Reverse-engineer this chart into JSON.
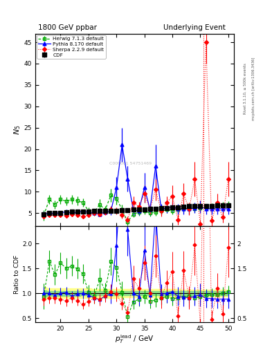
{
  "title_left": "1800 GeV ppbar",
  "title_right": "Underlying Event",
  "ylabel_main": "$N_5$",
  "ylabel_ratio": "Ratio to CDF",
  "xlabel": "$p_T^{\\rm lead}$ / GeV",
  "right_label1": "Rivet 3.1.10, ≥ 500k events",
  "right_label2": "mcplots.cern.ch [arXiv:1306.3436]",
  "watermark": "C000001 54751469",
  "ylim_main": [
    2,
    47
  ],
  "ylim_ratio": [
    0.42,
    2.35
  ],
  "xlim": [
    15.5,
    51
  ],
  "vline_x": 45.5,
  "cdf_x": [
    17,
    18,
    19,
    20,
    21,
    22,
    23,
    24,
    25,
    26,
    27,
    28,
    29,
    30,
    31,
    32,
    33,
    34,
    35,
    36,
    37,
    38,
    39,
    40,
    41,
    42,
    43,
    44,
    45,
    46,
    47,
    48,
    49,
    50
  ],
  "cdf_y": [
    4.8,
    5.0,
    5.1,
    5.1,
    5.2,
    5.3,
    5.3,
    5.4,
    5.4,
    5.5,
    5.5,
    5.5,
    5.6,
    5.6,
    5.7,
    5.7,
    5.8,
    5.9,
    5.9,
    6.0,
    6.0,
    6.1,
    6.2,
    6.3,
    6.4,
    6.5,
    6.6,
    6.6,
    6.7,
    6.7,
    6.7,
    6.8,
    6.8,
    6.8
  ],
  "cdf_yerr": [
    0.3,
    0.25,
    0.25,
    0.25,
    0.25,
    0.25,
    0.25,
    0.25,
    0.25,
    0.25,
    0.25,
    0.25,
    0.25,
    0.25,
    0.25,
    0.25,
    0.25,
    0.25,
    0.25,
    0.25,
    0.25,
    0.25,
    0.25,
    0.25,
    0.25,
    0.25,
    0.25,
    0.25,
    0.25,
    0.25,
    0.25,
    0.25,
    0.25,
    0.25
  ],
  "herwig_x": [
    17,
    18,
    19,
    20,
    21,
    22,
    23,
    24,
    25,
    26,
    27,
    28,
    29,
    30,
    31,
    32,
    33,
    34,
    35,
    36,
    37,
    38,
    39,
    40,
    41,
    42,
    43,
    44,
    45,
    46,
    47,
    48,
    49,
    50
  ],
  "herwig_y": [
    4.5,
    8.2,
    7.0,
    8.2,
    7.8,
    8.2,
    7.9,
    7.5,
    5.5,
    5.2,
    7.0,
    5.8,
    9.2,
    8.5,
    5.8,
    3.0,
    4.8,
    5.2,
    5.5,
    5.0,
    5.2,
    5.5,
    5.8,
    5.6,
    5.8,
    6.0,
    6.2,
    6.0,
    6.2,
    6.4,
    6.5,
    6.6,
    6.8,
    7.0
  ],
  "herwig_yerr": [
    1.2,
    1.0,
    1.0,
    1.0,
    1.0,
    1.0,
    1.0,
    1.0,
    0.8,
    0.8,
    1.2,
    0.8,
    1.5,
    1.5,
    1.2,
    0.8,
    0.8,
    0.8,
    0.8,
    0.8,
    0.8,
    0.8,
    0.8,
    0.8,
    0.8,
    0.8,
    0.8,
    0.8,
    0.8,
    0.8,
    0.8,
    0.8,
    0.8,
    0.8
  ],
  "pythia_x": [
    17,
    18,
    19,
    20,
    21,
    22,
    23,
    24,
    25,
    26,
    27,
    28,
    29,
    30,
    31,
    32,
    33,
    34,
    35,
    36,
    37,
    38,
    39,
    40,
    41,
    42,
    43,
    44,
    45,
    46,
    47,
    48,
    49,
    50
  ],
  "pythia_y": [
    4.8,
    5.0,
    4.9,
    5.1,
    5.3,
    5.0,
    5.2,
    5.4,
    5.2,
    5.0,
    4.8,
    5.2,
    5.5,
    11.0,
    21.0,
    13.0,
    5.8,
    5.5,
    11.0,
    5.8,
    16.0,
    6.0,
    6.2,
    6.5,
    6.0,
    6.0,
    6.0,
    6.2,
    6.5,
    6.0,
    6.0,
    6.0,
    6.0,
    6.0
  ],
  "pythia_yerr": [
    0.5,
    0.5,
    0.5,
    0.5,
    0.5,
    0.5,
    0.5,
    0.5,
    0.5,
    0.5,
    0.5,
    0.5,
    1.0,
    2.5,
    4.0,
    3.0,
    1.2,
    1.0,
    3.5,
    1.2,
    5.0,
    1.2,
    1.2,
    1.2,
    1.2,
    1.2,
    1.2,
    1.2,
    1.5,
    1.2,
    1.2,
    1.2,
    1.2,
    1.2
  ],
  "sherpa_x": [
    17,
    18,
    19,
    20,
    21,
    22,
    23,
    24,
    25,
    26,
    27,
    28,
    29,
    30,
    31,
    32,
    33,
    34,
    35,
    36,
    37,
    38,
    39,
    40,
    41,
    42,
    43,
    44,
    45,
    46,
    47,
    48,
    49,
    50
  ],
  "sherpa_y": [
    4.2,
    4.5,
    4.6,
    4.5,
    4.4,
    4.8,
    4.5,
    4.2,
    4.5,
    5.0,
    4.8,
    5.2,
    5.8,
    5.5,
    4.5,
    3.5,
    7.5,
    6.5,
    9.5,
    6.0,
    10.5,
    5.5,
    7.5,
    9.0,
    3.5,
    9.5,
    6.0,
    13.0,
    2.5,
    45.0,
    3.2,
    7.5,
    4.0,
    13.0
  ],
  "sherpa_yerr": [
    0.5,
    0.5,
    0.5,
    0.5,
    0.5,
    0.5,
    0.5,
    0.5,
    0.5,
    0.6,
    0.6,
    0.6,
    0.8,
    0.8,
    0.7,
    0.7,
    1.5,
    1.2,
    2.0,
    1.2,
    2.5,
    1.2,
    1.5,
    2.5,
    1.2,
    2.5,
    1.5,
    4.0,
    0.8,
    5.0,
    1.2,
    2.0,
    1.2,
    4.0
  ],
  "cdf_color": "#000000",
  "herwig_color": "#00aa00",
  "pythia_color": "#0000ff",
  "sherpa_color": "#ff0000",
  "ratio_band_yellow": "#ffff88",
  "ratio_band_green": "#88dd88"
}
